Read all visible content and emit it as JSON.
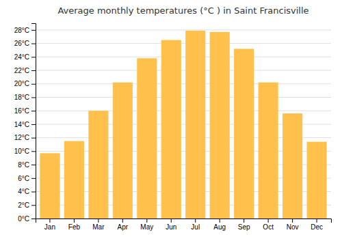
{
  "chart_data": {
    "type": "bar",
    "title": "Average monthly temperatures (°C ) in Saint Francisville",
    "categories": [
      "Jan",
      "Feb",
      "Mar",
      "Apr",
      "May",
      "Jun",
      "Jul",
      "Aug",
      "Sep",
      "Oct",
      "Nov",
      "Dec"
    ],
    "values": [
      9.7,
      11.5,
      16.0,
      20.2,
      23.8,
      26.5,
      27.9,
      27.7,
      25.2,
      20.2,
      15.6,
      11.4
    ],
    "color": "#FFC04C",
    "ylim": [
      0,
      29
    ],
    "yticks": [
      {
        "value": 0,
        "label": "0°C"
      },
      {
        "value": 2,
        "label": "2°C"
      },
      {
        "value": 4,
        "label": "4°C"
      },
      {
        "value": 6,
        "label": "6°C"
      },
      {
        "value": 8,
        "label": "8°C"
      },
      {
        "value": 10,
        "label": "10°C"
      },
      {
        "value": 12,
        "label": "12°C"
      },
      {
        "value": 14,
        "label": "14°C"
      },
      {
        "value": 16,
        "label": "16°C"
      },
      {
        "value": 18,
        "label": "18°C"
      },
      {
        "value": 20,
        "label": "20°C"
      },
      {
        "value": 22,
        "label": "22°C"
      },
      {
        "value": 24,
        "label": "24°C"
      },
      {
        "value": 26,
        "label": "26°C"
      },
      {
        "value": 28,
        "label": "28°C"
      }
    ],
    "grid": true
  }
}
